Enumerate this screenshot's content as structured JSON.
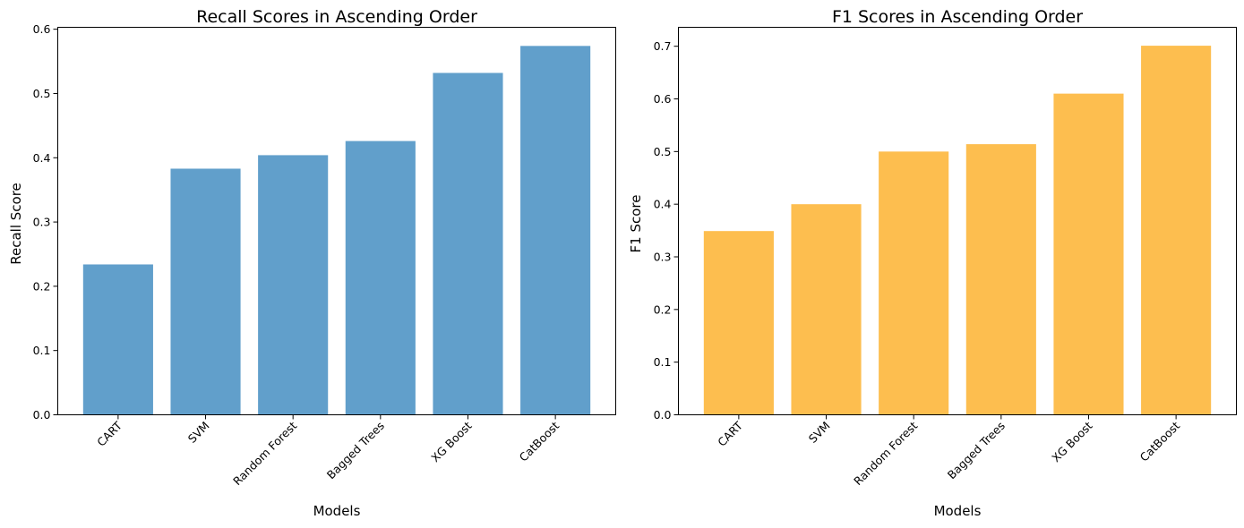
{
  "chart_data": [
    {
      "type": "bar",
      "title": "Recall Scores in Ascending Order",
      "xlabel": "Models",
      "ylabel": "Recall Score",
      "categories": [
        "CART",
        "SVM",
        "Random Forest",
        "Bagged Trees",
        "XG Boost",
        "CatBoost"
      ],
      "values": [
        0.234,
        0.383,
        0.404,
        0.426,
        0.532,
        0.574
      ],
      "ylim": [
        0,
        0.603
      ],
      "yticks": [
        "0.0",
        "0.1",
        "0.2",
        "0.3",
        "0.4",
        "0.5",
        "0.6"
      ],
      "color": "#619fcb",
      "grid": false,
      "legend": false
    },
    {
      "type": "bar",
      "title": "F1 Scores in Ascending Order",
      "xlabel": "Models",
      "ylabel": "F1 Score",
      "categories": [
        "CART",
        "SVM",
        "Random Forest",
        "Bagged Trees",
        "XG Boost",
        "CatBoost"
      ],
      "values": [
        0.349,
        0.4,
        0.5,
        0.514,
        0.61,
        0.701
      ],
      "ylim": [
        0,
        0.736
      ],
      "yticks": [
        "0.0",
        "0.1",
        "0.2",
        "0.3",
        "0.4",
        "0.5",
        "0.6",
        "0.7"
      ],
      "color": "#fdbe4f",
      "grid": false,
      "legend": false
    }
  ]
}
